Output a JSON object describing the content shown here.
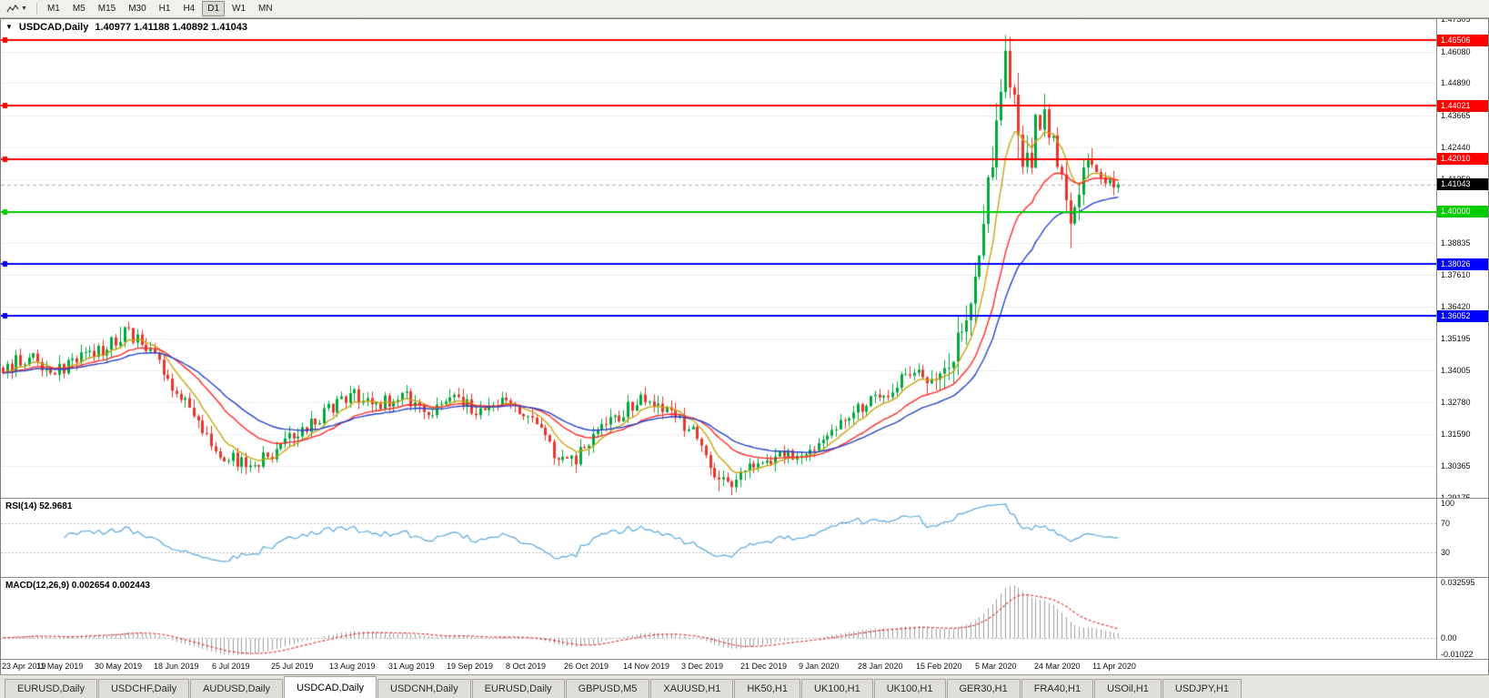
{
  "toolbar": {
    "timeframes": [
      "M1",
      "M5",
      "M15",
      "M30",
      "H1",
      "H4",
      "D1",
      "W1",
      "MN"
    ],
    "active_timeframe": "D1"
  },
  "chart": {
    "title_text": "USDCAD,Daily",
    "ohlc_text": "1.40977 1.41188 1.40892 1.41043",
    "current_price": {
      "price": 1.41043,
      "label": "1.41043",
      "color": "#000000"
    },
    "levels": [
      {
        "price": 1.46506,
        "label": "1.46506",
        "color": "#fe0000"
      },
      {
        "price": 1.44021,
        "label": "1.44021",
        "color": "#fe0000"
      },
      {
        "price": 1.4201,
        "label": "1.42010",
        "color": "#fe0000"
      },
      {
        "price": 1.4,
        "label": "1.40000",
        "color": "#00cc00"
      },
      {
        "price": 1.38026,
        "label": "1.38026",
        "color": "#0000fe"
      },
      {
        "price": 1.36052,
        "label": "1.36052",
        "color": "#0000fe"
      }
    ]
  },
  "rsi": {
    "label": "RSI(14) 52.9681"
  },
  "macd": {
    "label": "MACD(12,26,9) 0.002654 0.002443"
  },
  "dates": [
    "23 Apr 2019",
    "11 May 2019",
    "30 May 2019",
    "18 Jun 2019",
    "6 Jul 2019",
    "25 Jul 2019",
    "13 Aug 2019",
    "31 Aug 2019",
    "19 Sep 2019",
    "8 Oct 2019",
    "26 Oct 2019",
    "14 Nov 2019",
    "3 Dec 2019",
    "21 Dec 2019",
    "9 Jan 2020",
    "28 Jan 2020",
    "15 Feb 2020",
    "5 Mar 2020",
    "24 Mar 2020",
    "11 Apr 2020"
  ],
  "tabs": [
    {
      "label": "EURUSD,Daily"
    },
    {
      "label": "USDCHF,Daily"
    },
    {
      "label": "AUDUSD,Daily"
    },
    {
      "label": "USDCAD,Daily",
      "active": true
    },
    {
      "label": "USDCNH,Daily"
    },
    {
      "label": "EURUSD,Daily"
    },
    {
      "label": "GBPUSD,M5"
    },
    {
      "label": "XAUUSD,H1"
    },
    {
      "label": "HK50,H1"
    },
    {
      "label": "UK100,H1"
    },
    {
      "label": "UK100,H1"
    },
    {
      "label": "GER30,H1"
    },
    {
      "label": "FRA40,H1"
    },
    {
      "label": "USOil,H1"
    },
    {
      "label": "USDJPY,H1"
    }
  ],
  "chart_data": {
    "type": "candlestick",
    "title": "USDCAD,Daily",
    "ohlc_current": {
      "open": 1.40977,
      "high": 1.41188,
      "low": 1.40892,
      "close": 1.41043
    },
    "last_close": 1.41043,
    "colors": {
      "up": "#00a83c",
      "down": "#e8352b"
    },
    "y_axis": {
      "min": 1.29175,
      "max": 1.47305,
      "labels": [
        "1.47305",
        "1.46080",
        "1.44890",
        "1.43665",
        "1.42440",
        "1.41250",
        "1.40025",
        "1.38835",
        "1.37610",
        "1.36420",
        "1.35195",
        "1.34005",
        "1.32780",
        "1.31590",
        "1.30365",
        "1.29175"
      ]
    },
    "x_axis": {
      "candles": 258,
      "plot_fraction": 0.78
    },
    "candle_close_anchors": [
      [
        0,
        1.341
      ],
      [
        6,
        1.3455
      ],
      [
        12,
        1.3395
      ],
      [
        18,
        1.3445
      ],
      [
        24,
        1.349
      ],
      [
        28,
        1.354
      ],
      [
        32,
        1.3515
      ],
      [
        38,
        1.337
      ],
      [
        44,
        1.324
      ],
      [
        50,
        1.3085
      ],
      [
        56,
        1.3045
      ],
      [
        62,
        1.3075
      ],
      [
        68,
        1.3165
      ],
      [
        74,
        1.3235
      ],
      [
        80,
        1.3315
      ],
      [
        86,
        1.3265
      ],
      [
        92,
        1.3305
      ],
      [
        98,
        1.324
      ],
      [
        104,
        1.329
      ],
      [
        110,
        1.3245
      ],
      [
        116,
        1.329
      ],
      [
        122,
        1.3215
      ],
      [
        127,
        1.309
      ],
      [
        132,
        1.3065
      ],
      [
        138,
        1.3175
      ],
      [
        144,
        1.3255
      ],
      [
        149,
        1.33
      ],
      [
        154,
        1.324
      ],
      [
        159,
        1.3165
      ],
      [
        164,
        1.2985
      ],
      [
        168,
        1.296
      ],
      [
        173,
        1.304
      ],
      [
        179,
        1.3085
      ],
      [
        185,
        1.306
      ],
      [
        191,
        1.3175
      ],
      [
        197,
        1.325
      ],
      [
        203,
        1.3305
      ],
      [
        209,
        1.3395
      ],
      [
        214,
        1.3375
      ],
      [
        218,
        1.343
      ],
      [
        222,
        1.364
      ],
      [
        225,
        1.385
      ],
      [
        228,
        1.421
      ],
      [
        230,
        1.448
      ],
      [
        231,
        1.464
      ],
      [
        233,
        1.442
      ],
      [
        235,
        1.412
      ],
      [
        238,
        1.43
      ],
      [
        240,
        1.437
      ],
      [
        242,
        1.426
      ],
      [
        244,
        1.413
      ],
      [
        246,
        1.397
      ],
      [
        248,
        1.407
      ],
      [
        250,
        1.419
      ],
      [
        252,
        1.415
      ],
      [
        254,
        1.4095
      ],
      [
        257,
        1.41043
      ]
    ],
    "volatility_anchors": [
      [
        0,
        0.006
      ],
      [
        205,
        0.006
      ],
      [
        218,
        0.011
      ],
      [
        228,
        0.017
      ],
      [
        236,
        0.017
      ],
      [
        244,
        0.011
      ],
      [
        257,
        0.0075
      ]
    ],
    "forced_points": {
      "highs": [
        [
          27,
          1.3565
        ],
        [
          231,
          1.4668
        ],
        [
          251,
          1.4242
        ]
      ],
      "lows": [
        [
          55,
          1.3016
        ],
        [
          165,
          1.2942
        ],
        [
          246,
          1.3862
        ]
      ]
    },
    "moving_averages": [
      {
        "period": 8,
        "color": "#c8a415"
      },
      {
        "period": 21,
        "color": "#ff2a2a"
      },
      {
        "period": 34,
        "color": "#2743c9"
      }
    ],
    "indicators": {
      "rsi": {
        "label": "RSI(14) 52.9681",
        "period": 14,
        "color": "#57a7dc",
        "axis_labels": [
          "100",
          "70",
          "30"
        ],
        "guide_levels": [
          70,
          30
        ]
      },
      "macd": {
        "label": "MACD(12,26,9) 0.002654 0.002443",
        "fast": 12,
        "slow": 26,
        "signal": 9,
        "axis_max": 0.032595,
        "axis_min": -0.01022,
        "axis_labels": [
          "0.032595",
          "0.00",
          "-0.01022"
        ],
        "histogram_color": "#9e9e9e",
        "signal_color": "#e03131"
      }
    }
  }
}
